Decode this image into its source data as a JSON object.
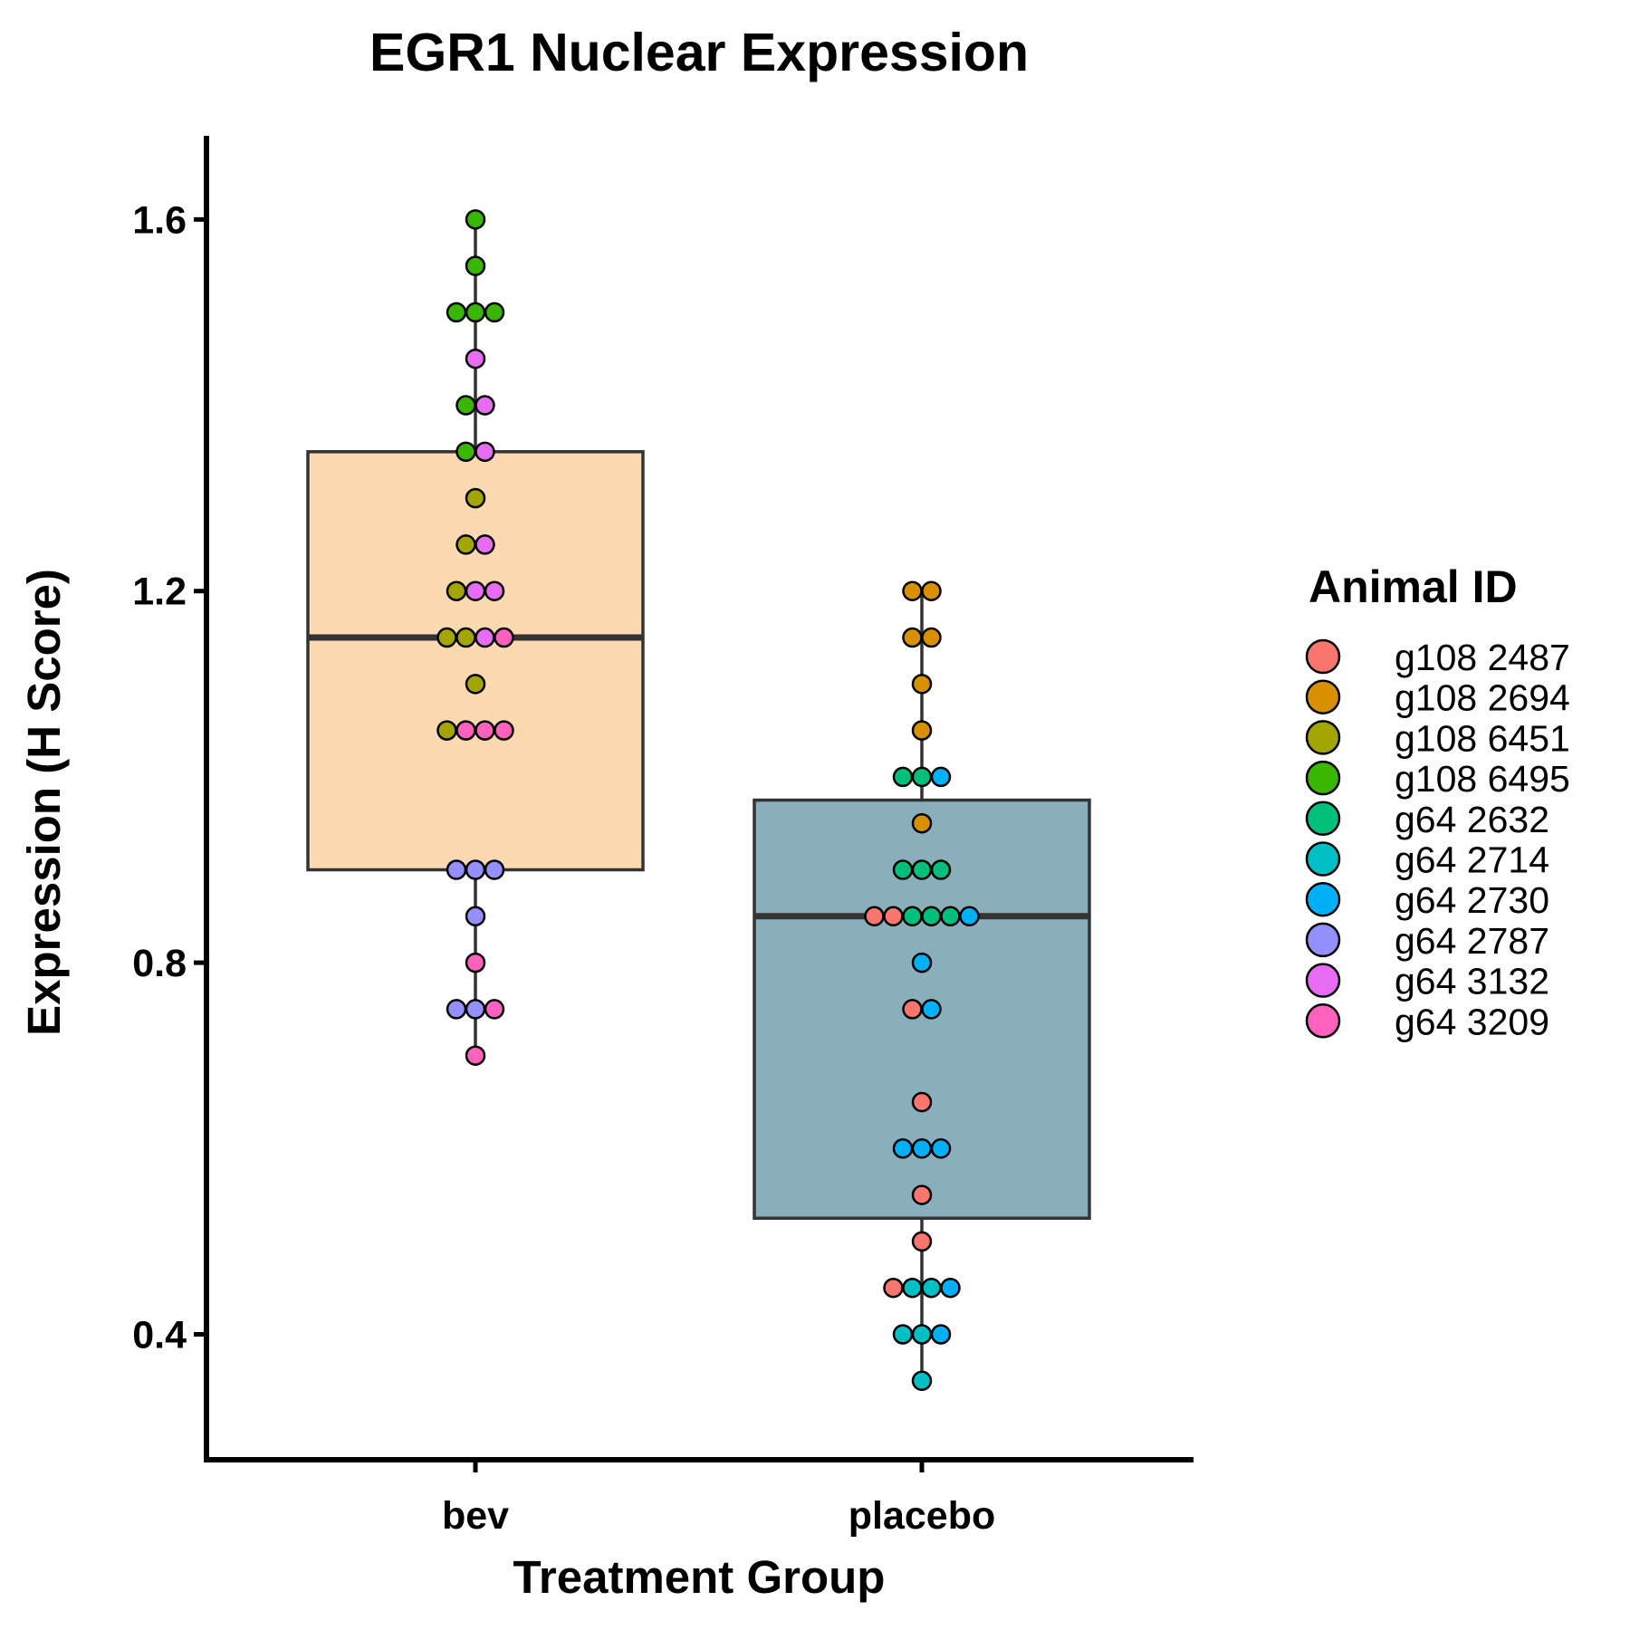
{
  "chart_data": {
    "type": "box",
    "title": "EGR1 Nuclear Expression",
    "xlabel": "Treatment Group",
    "ylabel": "Expression (H Score)",
    "ylim": [
      0.265,
      1.69
    ],
    "yticks": [
      0.4,
      0.8,
      1.2,
      1.6
    ],
    "ytick_labels": [
      "0.4",
      "0.8",
      "1.2",
      "1.6"
    ],
    "categories": [
      "bev",
      "placebo"
    ],
    "grid": false,
    "legend": {
      "title": "Animal ID",
      "placement": "right",
      "entries": [
        {
          "name": "g108 2487",
          "color": "#F8766D"
        },
        {
          "name": "g108 2694",
          "color": "#D89000"
        },
        {
          "name": "g108 6451",
          "color": "#A3A500"
        },
        {
          "name": "g108 6495",
          "color": "#39B600"
        },
        {
          "name": "g64 2632",
          "color": "#00BF7D"
        },
        {
          "name": "g64 2714",
          "color": "#00BFC4"
        },
        {
          "name": "g64 2730",
          "color": "#00B0F6"
        },
        {
          "name": "g64 2787",
          "color": "#9590FF"
        },
        {
          "name": "g64 3132",
          "color": "#E76BF3"
        },
        {
          "name": "g64 3209",
          "color": "#FF62BC"
        }
      ]
    },
    "boxes": [
      {
        "category": "bev",
        "fill": "#FDD9B2",
        "q1": 0.9,
        "median": 1.15,
        "q3": 1.35,
        "whisker_low": 0.7,
        "whisker_high": 1.6
      },
      {
        "category": "placebo",
        "fill": "#8AAFBC",
        "q1": 0.525,
        "median": 0.85,
        "q3": 0.975,
        "whisker_low": 0.35,
        "whisker_high": 1.2
      }
    ],
    "points": [
      {
        "group": "bev",
        "value": 1.6,
        "animal": "g108 6495"
      },
      {
        "group": "bev",
        "value": 1.55,
        "animal": "g108 6495"
      },
      {
        "group": "bev",
        "value": 1.5,
        "animal": "g108 6495"
      },
      {
        "group": "bev",
        "value": 1.5,
        "animal": "g108 6495"
      },
      {
        "group": "bev",
        "value": 1.5,
        "animal": "g108 6495"
      },
      {
        "group": "bev",
        "value": 1.45,
        "animal": "g64 3132"
      },
      {
        "group": "bev",
        "value": 1.4,
        "animal": "g108 6495"
      },
      {
        "group": "bev",
        "value": 1.4,
        "animal": "g64 3132"
      },
      {
        "group": "bev",
        "value": 1.35,
        "animal": "g108 6495"
      },
      {
        "group": "bev",
        "value": 1.35,
        "animal": "g64 3132"
      },
      {
        "group": "bev",
        "value": 1.3,
        "animal": "g108 6451"
      },
      {
        "group": "bev",
        "value": 1.25,
        "animal": "g108 6451"
      },
      {
        "group": "bev",
        "value": 1.25,
        "animal": "g64 3132"
      },
      {
        "group": "bev",
        "value": 1.2,
        "animal": "g108 6451"
      },
      {
        "group": "bev",
        "value": 1.2,
        "animal": "g64 3132"
      },
      {
        "group": "bev",
        "value": 1.2,
        "animal": "g64 3132"
      },
      {
        "group": "bev",
        "value": 1.15,
        "animal": "g108 6451"
      },
      {
        "group": "bev",
        "value": 1.15,
        "animal": "g108 6451"
      },
      {
        "group": "bev",
        "value": 1.15,
        "animal": "g64 3132"
      },
      {
        "group": "bev",
        "value": 1.15,
        "animal": "g64 3209"
      },
      {
        "group": "bev",
        "value": 1.1,
        "animal": "g108 6451"
      },
      {
        "group": "bev",
        "value": 1.05,
        "animal": "g108 6451"
      },
      {
        "group": "bev",
        "value": 1.05,
        "animal": "g64 3209"
      },
      {
        "group": "bev",
        "value": 1.05,
        "animal": "g64 3209"
      },
      {
        "group": "bev",
        "value": 1.05,
        "animal": "g64 3209"
      },
      {
        "group": "bev",
        "value": 0.9,
        "animal": "g64 2787"
      },
      {
        "group": "bev",
        "value": 0.9,
        "animal": "g64 2787"
      },
      {
        "group": "bev",
        "value": 0.9,
        "animal": "g64 2787"
      },
      {
        "group": "bev",
        "value": 0.85,
        "animal": "g64 2787"
      },
      {
        "group": "bev",
        "value": 0.8,
        "animal": "g64 3209"
      },
      {
        "group": "bev",
        "value": 0.75,
        "animal": "g64 2787"
      },
      {
        "group": "bev",
        "value": 0.75,
        "animal": "g64 2787"
      },
      {
        "group": "bev",
        "value": 0.75,
        "animal": "g64 3209"
      },
      {
        "group": "bev",
        "value": 0.7,
        "animal": "g64 3209"
      },
      {
        "group": "placebo",
        "value": 1.2,
        "animal": "g108 2694"
      },
      {
        "group": "placebo",
        "value": 1.2,
        "animal": "g108 2694"
      },
      {
        "group": "placebo",
        "value": 1.15,
        "animal": "g108 2694"
      },
      {
        "group": "placebo",
        "value": 1.15,
        "animal": "g108 2694"
      },
      {
        "group": "placebo",
        "value": 1.1,
        "animal": "g108 2694"
      },
      {
        "group": "placebo",
        "value": 1.05,
        "animal": "g108 2694"
      },
      {
        "group": "placebo",
        "value": 1.0,
        "animal": "g64 2632"
      },
      {
        "group": "placebo",
        "value": 1.0,
        "animal": "g64 2632"
      },
      {
        "group": "placebo",
        "value": 1.0,
        "animal": "g64 2730"
      },
      {
        "group": "placebo",
        "value": 0.95,
        "animal": "g108 2694"
      },
      {
        "group": "placebo",
        "value": 0.9,
        "animal": "g64 2632"
      },
      {
        "group": "placebo",
        "value": 0.9,
        "animal": "g64 2632"
      },
      {
        "group": "placebo",
        "value": 0.9,
        "animal": "g64 2632"
      },
      {
        "group": "placebo",
        "value": 0.85,
        "animal": "g108 2487"
      },
      {
        "group": "placebo",
        "value": 0.85,
        "animal": "g108 2487"
      },
      {
        "group": "placebo",
        "value": 0.85,
        "animal": "g64 2632"
      },
      {
        "group": "placebo",
        "value": 0.85,
        "animal": "g64 2632"
      },
      {
        "group": "placebo",
        "value": 0.85,
        "animal": "g64 2632"
      },
      {
        "group": "placebo",
        "value": 0.85,
        "animal": "g64 2730"
      },
      {
        "group": "placebo",
        "value": 0.8,
        "animal": "g64 2730"
      },
      {
        "group": "placebo",
        "value": 0.75,
        "animal": "g108 2487"
      },
      {
        "group": "placebo",
        "value": 0.75,
        "animal": "g64 2730"
      },
      {
        "group": "placebo",
        "value": 0.65,
        "animal": "g108 2487"
      },
      {
        "group": "placebo",
        "value": 0.6,
        "animal": "g64 2730"
      },
      {
        "group": "placebo",
        "value": 0.6,
        "animal": "g64 2730"
      },
      {
        "group": "placebo",
        "value": 0.6,
        "animal": "g64 2730"
      },
      {
        "group": "placebo",
        "value": 0.55,
        "animal": "g108 2487"
      },
      {
        "group": "placebo",
        "value": 0.5,
        "animal": "g108 2487"
      },
      {
        "group": "placebo",
        "value": 0.45,
        "animal": "g108 2487"
      },
      {
        "group": "placebo",
        "value": 0.45,
        "animal": "g64 2714"
      },
      {
        "group": "placebo",
        "value": 0.45,
        "animal": "g64 2714"
      },
      {
        "group": "placebo",
        "value": 0.45,
        "animal": "g64 2730"
      },
      {
        "group": "placebo",
        "value": 0.4,
        "animal": "g64 2714"
      },
      {
        "group": "placebo",
        "value": 0.4,
        "animal": "g64 2714"
      },
      {
        "group": "placebo",
        "value": 0.4,
        "animal": "g64 2730"
      },
      {
        "group": "placebo",
        "value": 0.35,
        "animal": "g64 2714"
      }
    ]
  }
}
